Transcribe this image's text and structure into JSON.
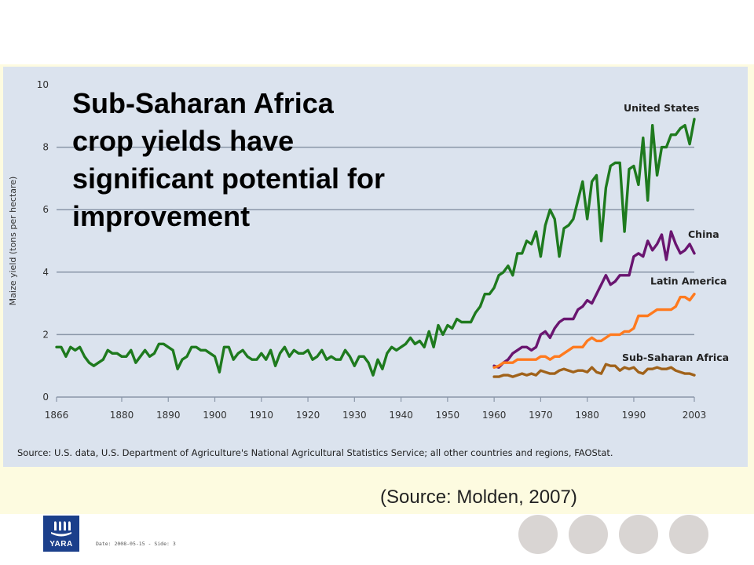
{
  "slide": {
    "title": "Sub-Saharan Africa\ncrop yields have\nsignificant potential for\nimprovement",
    "source_note": "Source: U.S. data, U.S. Department of Agriculture's National Agricultural Statistics Service; all other countries and regions, FAOStat.",
    "citation": "(Source: Molden, 2007)",
    "footer": "Date: 2008-05-15 - Side: 3",
    "logo_text": "YARA"
  },
  "colors": {
    "panel": "#dbe3ee",
    "band": "#fdfbe0",
    "grid": "#8a96a8",
    "axis_text": "#333333",
    "us": "#1e7a1e",
    "china": "#6a1570",
    "latin_america": "#ff7a1e",
    "ssa": "#a0621a",
    "circle": "#d9d5d3",
    "logo": "#1b3f8b"
  },
  "chart_data": {
    "type": "line",
    "title": "Sub-Saharan Africa crop yields have significant potential for improvement",
    "ylabel": "Maize yield (tons per hectare)",
    "xlabel": "",
    "xlim": [
      1866,
      2003
    ],
    "ylim": [
      0,
      10
    ],
    "x_ticks": [
      1866,
      1880,
      1890,
      1900,
      1910,
      1920,
      1930,
      1940,
      1950,
      1960,
      1970,
      1980,
      1990,
      2003
    ],
    "y_ticks": [
      0,
      2,
      4,
      6,
      8,
      10
    ],
    "grid": "horizontal",
    "series": [
      {
        "name": "United States",
        "color_key": "us",
        "points": [
          [
            1866,
            1.6
          ],
          [
            1867,
            1.6
          ],
          [
            1868,
            1.3
          ],
          [
            1869,
            1.6
          ],
          [
            1870,
            1.5
          ],
          [
            1871,
            1.6
          ],
          [
            1872,
            1.3
          ],
          [
            1873,
            1.1
          ],
          [
            1874,
            1.0
          ],
          [
            1875,
            1.1
          ],
          [
            1876,
            1.2
          ],
          [
            1877,
            1.5
          ],
          [
            1878,
            1.4
          ],
          [
            1879,
            1.4
          ],
          [
            1880,
            1.3
          ],
          [
            1881,
            1.3
          ],
          [
            1882,
            1.5
          ],
          [
            1883,
            1.1
          ],
          [
            1884,
            1.3
          ],
          [
            1885,
            1.5
          ],
          [
            1886,
            1.3
          ],
          [
            1887,
            1.4
          ],
          [
            1888,
            1.7
          ],
          [
            1889,
            1.7
          ],
          [
            1890,
            1.6
          ],
          [
            1891,
            1.5
          ],
          [
            1892,
            0.9
          ],
          [
            1893,
            1.2
          ],
          [
            1894,
            1.3
          ],
          [
            1895,
            1.6
          ],
          [
            1896,
            1.6
          ],
          [
            1897,
            1.5
          ],
          [
            1898,
            1.5
          ],
          [
            1899,
            1.4
          ],
          [
            1900,
            1.3
          ],
          [
            1901,
            0.8
          ],
          [
            1902,
            1.6
          ],
          [
            1903,
            1.6
          ],
          [
            1904,
            1.2
          ],
          [
            1905,
            1.4
          ],
          [
            1906,
            1.5
          ],
          [
            1907,
            1.3
          ],
          [
            1908,
            1.2
          ],
          [
            1909,
            1.2
          ],
          [
            1910,
            1.4
          ],
          [
            1911,
            1.2
          ],
          [
            1912,
            1.5
          ],
          [
            1913,
            1.0
          ],
          [
            1914,
            1.4
          ],
          [
            1915,
            1.6
          ],
          [
            1916,
            1.3
          ],
          [
            1917,
            1.5
          ],
          [
            1918,
            1.4
          ],
          [
            1919,
            1.4
          ],
          [
            1920,
            1.5
          ],
          [
            1921,
            1.2
          ],
          [
            1922,
            1.3
          ],
          [
            1923,
            1.5
          ],
          [
            1924,
            1.2
          ],
          [
            1925,
            1.3
          ],
          [
            1926,
            1.2
          ],
          [
            1927,
            1.2
          ],
          [
            1928,
            1.5
          ],
          [
            1929,
            1.3
          ],
          [
            1930,
            1.0
          ],
          [
            1931,
            1.3
          ],
          [
            1932,
            1.3
          ],
          [
            1933,
            1.1
          ],
          [
            1934,
            0.7
          ],
          [
            1935,
            1.2
          ],
          [
            1936,
            0.9
          ],
          [
            1937,
            1.4
          ],
          [
            1938,
            1.6
          ],
          [
            1939,
            1.5
          ],
          [
            1940,
            1.6
          ],
          [
            1941,
            1.7
          ],
          [
            1942,
            1.9
          ],
          [
            1943,
            1.7
          ],
          [
            1944,
            1.8
          ],
          [
            1945,
            1.6
          ],
          [
            1946,
            2.1
          ],
          [
            1947,
            1.6
          ],
          [
            1948,
            2.3
          ],
          [
            1949,
            2.0
          ],
          [
            1950,
            2.3
          ],
          [
            1951,
            2.2
          ],
          [
            1952,
            2.5
          ],
          [
            1953,
            2.4
          ],
          [
            1954,
            2.4
          ],
          [
            1955,
            2.4
          ],
          [
            1956,
            2.7
          ],
          [
            1957,
            2.9
          ],
          [
            1958,
            3.3
          ],
          [
            1959,
            3.3
          ],
          [
            1960,
            3.5
          ],
          [
            1961,
            3.9
          ],
          [
            1962,
            4.0
          ],
          [
            1963,
            4.2
          ],
          [
            1964,
            3.9
          ],
          [
            1965,
            4.6
          ],
          [
            1966,
            4.6
          ],
          [
            1967,
            5.0
          ],
          [
            1968,
            4.9
          ],
          [
            1969,
            5.3
          ],
          [
            1970,
            4.5
          ],
          [
            1971,
            5.5
          ],
          [
            1972,
            6.0
          ],
          [
            1973,
            5.7
          ],
          [
            1974,
            4.5
          ],
          [
            1975,
            5.4
          ],
          [
            1976,
            5.5
          ],
          [
            1977,
            5.7
          ],
          [
            1978,
            6.3
          ],
          [
            1979,
            6.9
          ],
          [
            1980,
            5.7
          ],
          [
            1981,
            6.9
          ],
          [
            1982,
            7.1
          ],
          [
            1983,
            5.0
          ],
          [
            1984,
            6.7
          ],
          [
            1985,
            7.4
          ],
          [
            1986,
            7.5
          ],
          [
            1987,
            7.5
          ],
          [
            1988,
            5.3
          ],
          [
            1989,
            7.3
          ],
          [
            1990,
            7.4
          ],
          [
            1991,
            6.8
          ],
          [
            1992,
            8.3
          ],
          [
            1993,
            6.3
          ],
          [
            1994,
            8.7
          ],
          [
            1995,
            7.1
          ],
          [
            1996,
            8.0
          ],
          [
            1997,
            8.0
          ],
          [
            1998,
            8.4
          ],
          [
            1999,
            8.4
          ],
          [
            2000,
            8.6
          ],
          [
            2001,
            8.7
          ],
          [
            2002,
            8.1
          ],
          [
            2003,
            8.9
          ]
        ]
      },
      {
        "name": "China",
        "color_key": "china",
        "points": [
          [
            1960,
            1.0
          ],
          [
            1961,
            0.95
          ],
          [
            1962,
            1.1
          ],
          [
            1963,
            1.2
          ],
          [
            1964,
            1.4
          ],
          [
            1965,
            1.5
          ],
          [
            1966,
            1.6
          ],
          [
            1967,
            1.6
          ],
          [
            1968,
            1.5
          ],
          [
            1969,
            1.6
          ],
          [
            1970,
            2.0
          ],
          [
            1971,
            2.1
          ],
          [
            1972,
            1.9
          ],
          [
            1973,
            2.2
          ],
          [
            1974,
            2.4
          ],
          [
            1975,
            2.5
          ],
          [
            1976,
            2.5
          ],
          [
            1977,
            2.5
          ],
          [
            1978,
            2.8
          ],
          [
            1979,
            2.9
          ],
          [
            1980,
            3.1
          ],
          [
            1981,
            3.0
          ],
          [
            1982,
            3.3
          ],
          [
            1983,
            3.6
          ],
          [
            1984,
            3.9
          ],
          [
            1985,
            3.6
          ],
          [
            1986,
            3.7
          ],
          [
            1987,
            3.9
          ],
          [
            1988,
            3.9
          ],
          [
            1989,
            3.9
          ],
          [
            1990,
            4.5
          ],
          [
            1991,
            4.6
          ],
          [
            1992,
            4.5
          ],
          [
            1993,
            5.0
          ],
          [
            1994,
            4.7
          ],
          [
            1995,
            4.9
          ],
          [
            1996,
            5.2
          ],
          [
            1997,
            4.4
          ],
          [
            1998,
            5.3
          ],
          [
            1999,
            4.9
          ],
          [
            2000,
            4.6
          ],
          [
            2001,
            4.7
          ],
          [
            2002,
            4.9
          ],
          [
            2003,
            4.6
          ]
        ]
      },
      {
        "name": "Latin America",
        "color_key": "latin_america",
        "points": [
          [
            1960,
            0.95
          ],
          [
            1961,
            1.0
          ],
          [
            1962,
            1.1
          ],
          [
            1963,
            1.1
          ],
          [
            1964,
            1.1
          ],
          [
            1965,
            1.2
          ],
          [
            1966,
            1.2
          ],
          [
            1967,
            1.2
          ],
          [
            1968,
            1.2
          ],
          [
            1969,
            1.2
          ],
          [
            1970,
            1.3
          ],
          [
            1971,
            1.3
          ],
          [
            1972,
            1.2
          ],
          [
            1973,
            1.3
          ],
          [
            1974,
            1.3
          ],
          [
            1975,
            1.4
          ],
          [
            1976,
            1.5
          ],
          [
            1977,
            1.6
          ],
          [
            1978,
            1.6
          ],
          [
            1979,
            1.6
          ],
          [
            1980,
            1.8
          ],
          [
            1981,
            1.9
          ],
          [
            1982,
            1.8
          ],
          [
            1983,
            1.8
          ],
          [
            1984,
            1.9
          ],
          [
            1985,
            2.0
          ],
          [
            1986,
            2.0
          ],
          [
            1987,
            2.0
          ],
          [
            1988,
            2.1
          ],
          [
            1989,
            2.1
          ],
          [
            1990,
            2.2
          ],
          [
            1991,
            2.6
          ],
          [
            1992,
            2.6
          ],
          [
            1993,
            2.6
          ],
          [
            1994,
            2.7
          ],
          [
            1995,
            2.8
          ],
          [
            1996,
            2.8
          ],
          [
            1997,
            2.8
          ],
          [
            1998,
            2.8
          ],
          [
            1999,
            2.9
          ],
          [
            2000,
            3.2
          ],
          [
            2001,
            3.2
          ],
          [
            2002,
            3.1
          ],
          [
            2003,
            3.3
          ]
        ]
      },
      {
        "name": "Sub-Saharan Africa",
        "color_key": "ssa",
        "points": [
          [
            1960,
            0.65
          ],
          [
            1961,
            0.65
          ],
          [
            1962,
            0.7
          ],
          [
            1963,
            0.7
          ],
          [
            1964,
            0.65
          ],
          [
            1965,
            0.7
          ],
          [
            1966,
            0.75
          ],
          [
            1967,
            0.7
          ],
          [
            1968,
            0.75
          ],
          [
            1969,
            0.7
          ],
          [
            1970,
            0.85
          ],
          [
            1971,
            0.8
          ],
          [
            1972,
            0.75
          ],
          [
            1973,
            0.75
          ],
          [
            1974,
            0.85
          ],
          [
            1975,
            0.9
          ],
          [
            1976,
            0.85
          ],
          [
            1977,
            0.8
          ],
          [
            1978,
            0.85
          ],
          [
            1979,
            0.85
          ],
          [
            1980,
            0.8
          ],
          [
            1981,
            0.95
          ],
          [
            1982,
            0.8
          ],
          [
            1983,
            0.75
          ],
          [
            1984,
            1.05
          ],
          [
            1985,
            1.0
          ],
          [
            1986,
            1.0
          ],
          [
            1987,
            0.85
          ],
          [
            1988,
            0.95
          ],
          [
            1989,
            0.9
          ],
          [
            1990,
            0.95
          ],
          [
            1991,
            0.8
          ],
          [
            1992,
            0.75
          ],
          [
            1993,
            0.9
          ],
          [
            1994,
            0.9
          ],
          [
            1995,
            0.95
          ],
          [
            1996,
            0.9
          ],
          [
            1997,
            0.9
          ],
          [
            1998,
            0.95
          ],
          [
            1999,
            0.85
          ],
          [
            2000,
            0.8
          ],
          [
            2001,
            0.75
          ],
          [
            2002,
            0.75
          ],
          [
            2003,
            0.7
          ]
        ]
      }
    ]
  }
}
